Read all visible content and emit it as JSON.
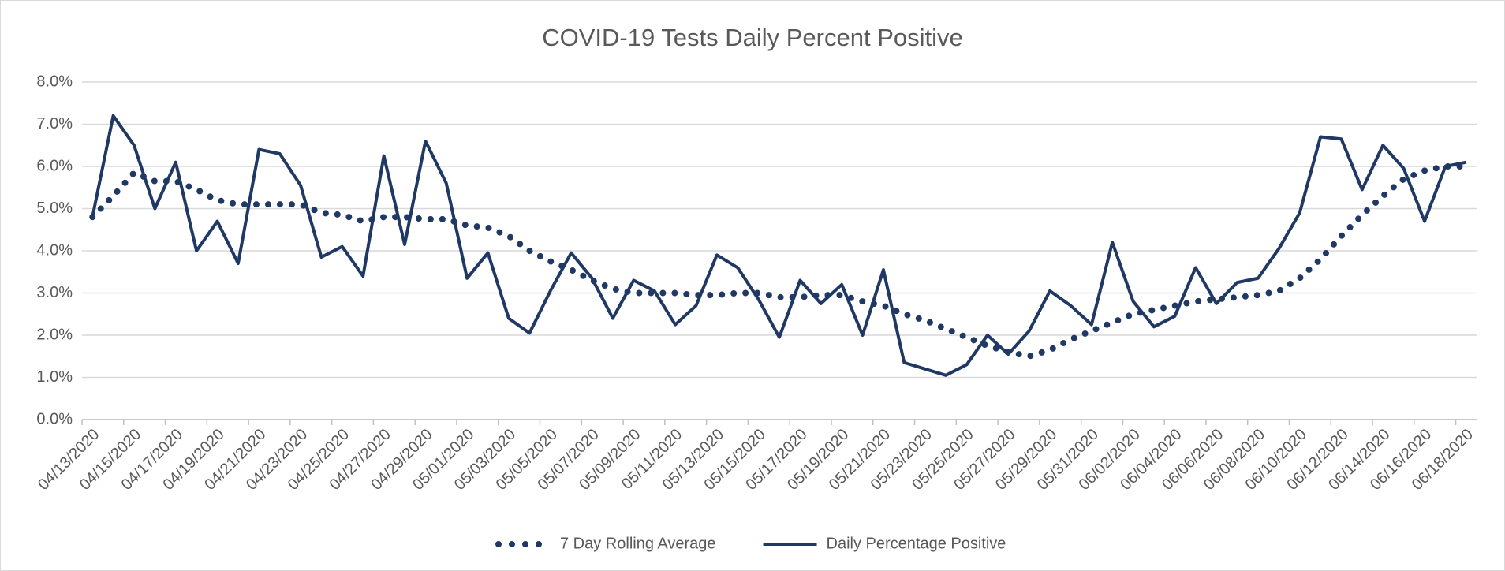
{
  "chart_data": {
    "type": "line",
    "title": "COVID-19 Tests Daily Percent Positive",
    "categories": [
      "04/13/2020",
      null,
      "04/15/2020",
      null,
      "04/17/2020",
      null,
      "04/19/2020",
      null,
      "04/21/2020",
      null,
      "04/23/2020",
      null,
      "04/25/2020",
      null,
      "04/27/2020",
      null,
      "04/29/2020",
      null,
      "05/01/2020",
      null,
      "05/03/2020",
      null,
      "05/05/2020",
      null,
      "05/07/2020",
      null,
      "05/09/2020",
      null,
      "05/11/2020",
      null,
      "05/13/2020",
      null,
      "05/15/2020",
      null,
      "05/17/2020",
      null,
      "05/19/2020",
      null,
      "05/21/2020",
      null,
      "05/23/2020",
      null,
      "05/25/2020",
      null,
      "05/27/2020",
      null,
      "05/29/2020",
      null,
      "05/31/2020",
      null,
      "06/02/2020",
      null,
      "06/04/2020",
      null,
      "06/06/2020",
      null,
      "06/08/2020",
      null,
      "06/10/2020",
      null,
      "06/12/2020",
      null,
      "06/14/2020",
      null,
      "06/16/2020",
      null,
      "06/18/2020"
    ],
    "series": [
      {
        "name": "7 Day Rolling Average",
        "color": "#203864",
        "style": "dotted",
        "values": [
          4.8,
          5.3,
          5.85,
          5.65,
          5.65,
          5.45,
          5.2,
          5.1,
          5.1,
          5.1,
          5.1,
          4.9,
          4.85,
          4.7,
          4.8,
          4.8,
          4.75,
          4.75,
          4.6,
          4.55,
          4.35,
          4.0,
          3.75,
          3.55,
          3.3,
          3.1,
          3.0,
          3.0,
          3.0,
          2.95,
          2.95,
          3.0,
          3.0,
          2.9,
          2.9,
          2.95,
          2.95,
          2.8,
          2.7,
          2.5,
          2.35,
          2.15,
          1.95,
          1.75,
          1.6,
          1.5,
          1.65,
          1.9,
          2.1,
          2.3,
          2.5,
          2.6,
          2.7,
          2.8,
          2.85,
          2.9,
          2.95,
          3.05,
          3.35,
          3.8,
          4.35,
          4.85,
          5.3,
          5.7,
          5.9,
          6.0,
          6.0
        ]
      },
      {
        "name": "Daily Percentage Positive",
        "color": "#203864",
        "style": "solid",
        "values": [
          4.8,
          7.2,
          6.5,
          5.0,
          6.1,
          4.0,
          4.7,
          3.7,
          6.4,
          6.3,
          5.55,
          3.85,
          4.1,
          3.4,
          6.25,
          4.15,
          6.6,
          5.6,
          3.35,
          3.95,
          2.4,
          2.05,
          3.05,
          3.95,
          3.35,
          2.4,
          3.3,
          3.05,
          2.25,
          2.7,
          3.9,
          3.6,
          2.85,
          1.95,
          3.3,
          2.75,
          3.2,
          2.0,
          3.55,
          1.35,
          1.2,
          1.05,
          1.3,
          2.0,
          1.55,
          2.1,
          3.05,
          2.7,
          2.25,
          4.2,
          2.8,
          2.2,
          2.45,
          3.6,
          2.75,
          3.25,
          3.35,
          4.05,
          4.9,
          6.7,
          6.65,
          5.45,
          6.5,
          5.95,
          4.7,
          6.0,
          6.1
        ]
      }
    ],
    "ylim": [
      0,
      8
    ],
    "yticks": [
      {
        "value": 0,
        "label": "0.0%"
      },
      {
        "value": 1,
        "label": "1.0%"
      },
      {
        "value": 2,
        "label": "2.0%"
      },
      {
        "value": 3,
        "label": "3.0%"
      },
      {
        "value": 4,
        "label": "4.0%"
      },
      {
        "value": 5,
        "label": "5.0%"
      },
      {
        "value": 6,
        "label": "6.0%"
      },
      {
        "value": 7,
        "label": "7.0%"
      },
      {
        "value": 8,
        "label": "8.0%"
      }
    ],
    "grid": true,
    "legend": "bottom"
  }
}
